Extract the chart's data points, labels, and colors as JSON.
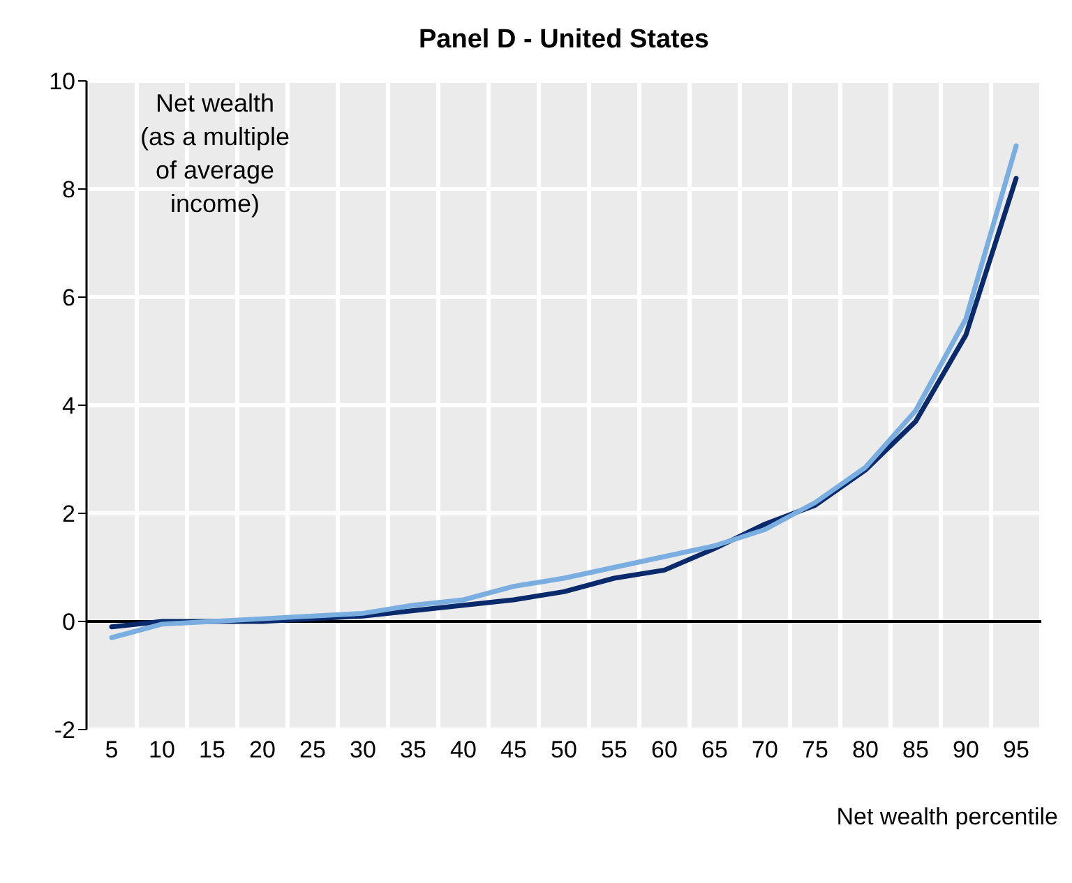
{
  "chart_data": {
    "type": "line",
    "title": "Panel D - United States",
    "ylabel": "Net wealth\n(as a multiple\nof average\nincome)",
    "xlabel": "Net wealth percentile",
    "categories": [
      "5",
      "10",
      "15",
      "20",
      "25",
      "30",
      "35",
      "40",
      "45",
      "50",
      "55",
      "60",
      "65",
      "70",
      "75",
      "80",
      "85",
      "90",
      "95"
    ],
    "series": [
      {
        "color": "#0b2a6b",
        "values": [
          -0.1,
          0,
          0,
          0,
          0.05,
          0.1,
          0.2,
          0.3,
          0.4,
          0.55,
          0.8,
          0.95,
          1.35,
          1.8,
          2.15,
          2.8,
          3.7,
          5.3,
          8.2
        ]
      },
      {
        "color": "#7aaee0",
        "values": [
          -0.3,
          -0.05,
          0,
          0.05,
          0.1,
          0.15,
          0.3,
          0.4,
          0.65,
          0.8,
          1.0,
          1.2,
          1.4,
          1.7,
          2.2,
          2.85,
          3.9,
          5.6,
          8.8
        ]
      }
    ],
    "ylim": [
      -2,
      10
    ],
    "yticks": [
      -2,
      0,
      2,
      4,
      6,
      8,
      10
    ],
    "grid": true,
    "legend": false,
    "marker": "none",
    "line_style": "solid"
  }
}
